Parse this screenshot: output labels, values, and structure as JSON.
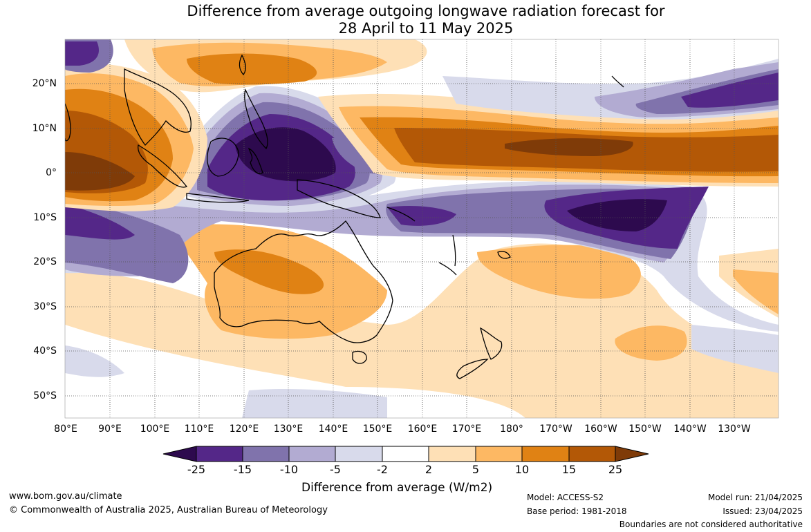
{
  "title": {
    "line1": "Difference from average outgoing longwave radiation forecast for",
    "line2": "28 April to 11 May 2025"
  },
  "map": {
    "lon_labels": [
      "80°E",
      "90°E",
      "100°E",
      "110°E",
      "120°E",
      "130°E",
      "140°E",
      "150°E",
      "160°E",
      "170°E",
      "180°",
      "170°W",
      "160°W",
      "150°W",
      "140°W",
      "130°W"
    ],
    "lat_labels": [
      "20°N",
      "10°N",
      "0°",
      "10°S",
      "20°S",
      "30°S",
      "40°S",
      "50°S"
    ],
    "lon_range": [
      80,
      240
    ],
    "lat_range": [
      -55,
      30
    ],
    "gridlines": true,
    "gridline_style": "dotted"
  },
  "colorbar": {
    "labels": [
      "-25",
      "-15",
      "-10",
      "-5",
      "-2",
      "2",
      "5",
      "10",
      "15",
      "25"
    ],
    "colors": [
      "#2d0a4e",
      "#542788",
      "#8073ac",
      "#b2abd2",
      "#d8daeb",
      "#ffffff",
      "#fee0b6",
      "#fdb863",
      "#e08214",
      "#b35806",
      "#7f3b08"
    ],
    "title": "Difference from average (W/m2)"
  },
  "footer": {
    "url": "www.bom.gov.au/climate",
    "copyright": "© Commonwealth of Australia 2025, Australian Bureau of Meteorology",
    "model": "Model: ACCESS-S2",
    "base_period": "Base period: 1981-2018",
    "model_run": "Model run: 21/04/2025",
    "issued": "Issued: 23/04/2025",
    "disclaimer": "Boundaries are not considered authoritative"
  }
}
